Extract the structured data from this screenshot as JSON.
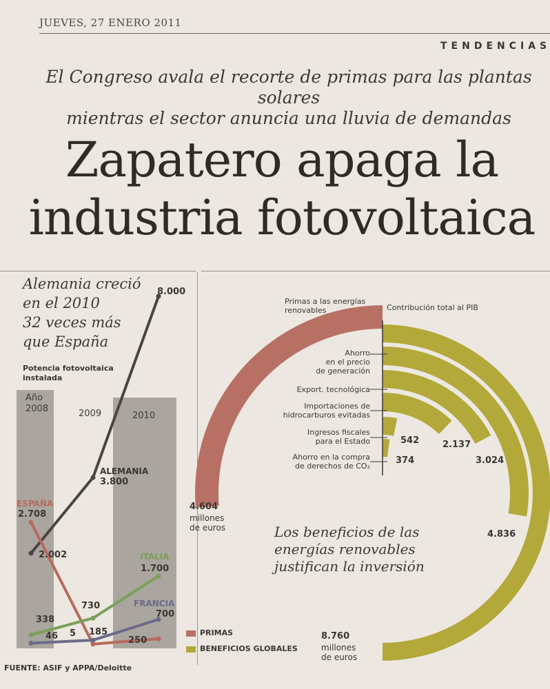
{
  "header": {
    "date": "JUEVES, 27 ENERO 2011",
    "section": "TENDENCIAS"
  },
  "article": {
    "subhead_line1": "El Congreso avala el recorte de primas para las plantas solares",
    "subhead_line2": "mientras el sector anuncia una lluvia de demandas",
    "headline_line1": "Zapatero apaga la",
    "headline_line2": "industria fotovoltaica"
  },
  "chart_data": [
    {
      "type": "line",
      "title": "Alemania creció en el 2010 32 veces más que España",
      "title_lines": [
        "Alemania creció",
        "en el 2010",
        "32 veces más",
        "que España"
      ],
      "subtitle_lines": [
        "Potencia fotovoltaica",
        "instalada"
      ],
      "year_prefix": "Año",
      "x": [
        "2008",
        "2009",
        "2010"
      ],
      "series": [
        {
          "name": "ALEMANIA",
          "values": [
            2002,
            3800,
            8000
          ],
          "value_labels": [
            "2.002",
            "3.800",
            "8.000"
          ],
          "color": "#4a4442"
        },
        {
          "name": "ESPAÑA",
          "values": [
            2708,
            5,
            250
          ],
          "value_labels": [
            "2.708",
            "5",
            "250"
          ],
          "color": "#b76a5d"
        },
        {
          "name": "ITALIA",
          "values": [
            338,
            730,
            1700
          ],
          "value_labels": [
            "338",
            "730",
            "1.700"
          ],
          "color": "#7aa05a"
        },
        {
          "name": "FRANCIA",
          "values": [
            46,
            185,
            700
          ],
          "value_labels": [
            "46",
            "185",
            "700"
          ],
          "color": "#6a6a8a"
        }
      ],
      "source": "FUENTE: ASIF y APPA/Deloitte"
    },
    {
      "type": "pie",
      "primas_header": "Primas a las energías renovables",
      "pib_header": "Contribución total al PIB",
      "primas": {
        "value": 4604,
        "label": "4.604",
        "unit_lines": [
          "millones",
          "de euros"
        ],
        "color": "#b87065"
      },
      "benefits": [
        {
          "name": "Ahorro en el precio de generación",
          "lines": [
            "Ahorro",
            "en el precio",
            "de generación"
          ],
          "value": 4836,
          "label": "4.836"
        },
        {
          "name": "Export. tecnológica",
          "lines": [
            "Export. tecnológica"
          ],
          "value": 3024,
          "label": "3.024"
        },
        {
          "name": "Importaciones de hidrocarburos evitadas",
          "lines": [
            "Importaciones de",
            "hidrocarburos evitadas"
          ],
          "value": 2137,
          "label": "2.137"
        },
        {
          "name": "Ingresos fiscales para el Estado",
          "lines": [
            "Ingresos fiscales",
            "para el Estado"
          ],
          "value": 542,
          "label": "542"
        },
        {
          "name": "Ahorro en la compra de derechos de CO2",
          "lines": [
            "Ahorro en la compra",
            "de derechos de CO₂"
          ],
          "value": 374,
          "label": "374"
        }
      ],
      "total": {
        "value": 8760,
        "label": "8.760",
        "unit_lines": [
          "millones",
          "de euros"
        ]
      },
      "benefits_color": "#b3a83a",
      "note_lines": [
        "Los beneficios de las",
        "energías renovables",
        "justifican la inversión"
      ],
      "legend": [
        {
          "label": "PRIMAS",
          "color": "#b87065"
        },
        {
          "label": "BENEFICIOS GLOBALES",
          "color": "#b3a83a"
        }
      ]
    }
  ]
}
